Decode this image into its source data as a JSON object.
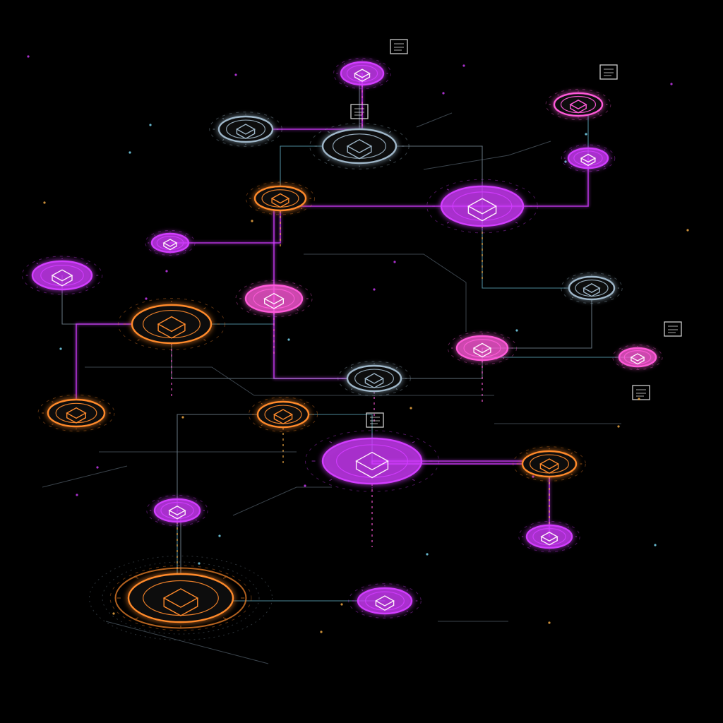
{
  "canvas": {
    "background": "#000000"
  },
  "palette": {
    "magenta": "#d23cff",
    "pink": "#ff5ad9",
    "orange": "#ff8a2b",
    "amber": "#ffb347",
    "cyan": "#7fe3ff",
    "steel": "#9fb7c9",
    "grey": "#6b7c8a"
  },
  "nodes": [
    {
      "id": "n-top-center",
      "accent": "magenta",
      "icon": "cube-icon"
    },
    {
      "id": "n-top-left-ring",
      "accent": "steel",
      "icon": "ring-icon"
    },
    {
      "id": "n-chip-center",
      "accent": "steel",
      "icon": "chip-icon"
    },
    {
      "id": "n-upper-orange",
      "accent": "orange",
      "icon": "box-icon"
    },
    {
      "id": "n-small-left",
      "accent": "magenta",
      "icon": "dot-icon"
    },
    {
      "id": "n-far-left",
      "accent": "magenta",
      "icon": "gear-icon"
    },
    {
      "id": "n-big-magenta",
      "accent": "magenta",
      "icon": "grid-icon"
    },
    {
      "id": "n-top-right-card",
      "accent": "pink",
      "icon": "card-icon"
    },
    {
      "id": "n-right-gear",
      "accent": "magenta",
      "icon": "gear-icon"
    },
    {
      "id": "n-right-steel",
      "accent": "steel",
      "icon": "link-icon"
    },
    {
      "id": "n-left-orange-big",
      "accent": "orange",
      "icon": "box-icon"
    },
    {
      "id": "n-center-pink",
      "accent": "pink",
      "icon": "eye-icon"
    },
    {
      "id": "n-center-small",
      "accent": "steel",
      "icon": "ring-icon"
    },
    {
      "id": "n-right-pink",
      "accent": "pink",
      "icon": "cube-icon"
    },
    {
      "id": "n-far-right-cyl",
      "accent": "pink",
      "icon": "db-icon"
    },
    {
      "id": "n-left-orange-low",
      "accent": "orange",
      "icon": "box-icon"
    },
    {
      "id": "n-mid-orange",
      "accent": "orange",
      "icon": "doc-icon"
    },
    {
      "id": "n-center-big-magenta",
      "accent": "magenta",
      "icon": "grid-icon"
    },
    {
      "id": "n-right-orange",
      "accent": "orange",
      "icon": "stack-icon"
    },
    {
      "id": "n-low-left-card",
      "accent": "magenta",
      "icon": "card-icon"
    },
    {
      "id": "n-low-right-magenta",
      "accent": "magenta",
      "icon": "chip-icon"
    },
    {
      "id": "n-bottom-orange-hub",
      "accent": "orange",
      "icon": "lock-icon"
    },
    {
      "id": "n-bottom-magenta",
      "accent": "magenta",
      "icon": "cube-icon"
    }
  ],
  "links": [
    [
      "n-top-left-ring",
      "n-top-center"
    ],
    [
      "n-chip-center",
      "n-top-center"
    ],
    [
      "n-chip-center",
      "n-upper-orange"
    ],
    [
      "n-upper-orange",
      "n-small-left"
    ],
    [
      "n-chip-center",
      "n-big-magenta"
    ],
    [
      "n-big-magenta",
      "n-right-steel"
    ],
    [
      "n-big-magenta",
      "n-center-pink"
    ],
    [
      "n-far-left",
      "n-left-orange-big"
    ],
    [
      "n-left-orange-big",
      "n-center-pink"
    ],
    [
      "n-center-pink",
      "n-center-small"
    ],
    [
      "n-center-small",
      "n-right-pink"
    ],
    [
      "n-right-pink",
      "n-far-right-cyl"
    ],
    [
      "n-left-orange-big",
      "n-left-orange-low"
    ],
    [
      "n-left-orange-big",
      "n-center-small"
    ],
    [
      "n-mid-orange",
      "n-center-big-magenta"
    ],
    [
      "n-center-big-magenta",
      "n-right-orange"
    ],
    [
      "n-mid-orange",
      "n-low-left-card"
    ],
    [
      "n-low-left-card",
      "n-bottom-magenta"
    ],
    [
      "n-center-big-magenta",
      "n-low-right-magenta"
    ],
    [
      "n-right-steel",
      "n-right-pink"
    ],
    [
      "n-top-right-card",
      "n-right-gear"
    ],
    [
      "n-right-gear",
      "n-big-magenta"
    ],
    [
      "n-low-left-card",
      "n-bottom-orange-hub"
    ]
  ]
}
